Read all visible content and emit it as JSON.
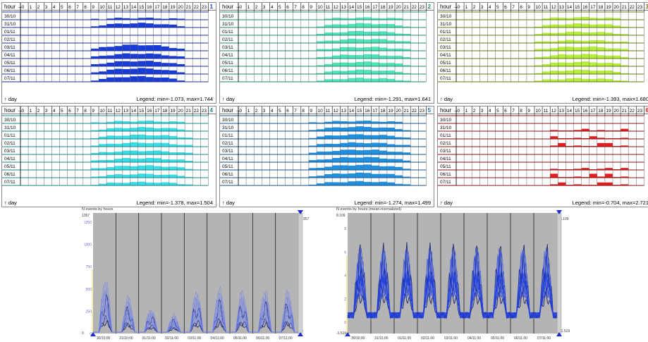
{
  "hours": [
    "0",
    "1",
    "2",
    "3",
    "4",
    "5",
    "6",
    "7",
    "8",
    "9",
    "10",
    "11",
    "12",
    "13",
    "14",
    "15",
    "16",
    "17",
    "18",
    "19",
    "20",
    "21",
    "22",
    "23"
  ],
  "days": [
    "30/10",
    "31/10",
    "01/11",
    "02/11",
    "03/11",
    "04/11",
    "05/11",
    "06/11",
    "07/11"
  ],
  "hour_label": "hour →",
  "day_label": "↑ day",
  "panels": [
    {
      "number": "1",
      "color": "#1a3cd6",
      "grid": "#1d2f9a",
      "legend": "Legend: min=-1.073, max=1.744",
      "start": 9,
      "end": 20,
      "pattern": [
        0.2,
        0.6,
        0.0,
        0.0,
        0.85,
        0.7,
        0.75,
        0.8,
        0.75
      ],
      "numcolor": "#1a3cd6"
    },
    {
      "number": "2",
      "color": "#4de2b8",
      "grid": "#1f8a6c",
      "legend": "Legend: min=-1.291, max=1.641",
      "start": 10,
      "end": 21,
      "pattern": [
        0.25,
        0.55,
        0.55,
        0.55,
        0.5,
        0.55,
        0.6,
        0.55,
        0.5
      ],
      "numcolor": "#1f8a6c"
    },
    {
      "number": "3",
      "color": "#b6ec3a",
      "grid": "#5f7d10",
      "legend": "Legend: min=-1.393, max=1.680",
      "start": 10,
      "end": 21,
      "pattern": [
        0.3,
        0.5,
        0.45,
        0.35,
        0.55,
        0.6,
        0.6,
        0.55,
        0.45
      ],
      "numcolor": "#7a6a10"
    },
    {
      "number": "4",
      "color": "#37dde3",
      "grid": "#16878b",
      "legend": "Legend: min=-1.378, max=1.504",
      "start": 9,
      "end": 21,
      "pattern": [
        0.3,
        0.5,
        0.55,
        0.55,
        0.5,
        0.55,
        0.6,
        0.5,
        0.45
      ],
      "numcolor": "#16878b"
    },
    {
      "number": "5",
      "color": "#1f8fe0",
      "grid": "#10508a",
      "legend": "Legend: min=-1.274, max=1.499",
      "start": 9,
      "end": 21,
      "pattern": [
        0.3,
        0.6,
        0.6,
        0.55,
        0.65,
        0.7,
        0.7,
        0.65,
        0.55
      ],
      "numcolor": "#1f6fcc"
    },
    {
      "number": "6",
      "color": "#e41e1e",
      "grid": "#8a1010",
      "legend": "Legend: min=-0.704, max=2.721",
      "start": 12,
      "end": 21,
      "pattern": [
        0.0,
        0.3,
        0.35,
        0.5,
        0.0,
        0.0,
        0.25,
        0.55,
        0.4
      ],
      "numcolor": "#e41e1e"
    }
  ],
  "charts": [
    {
      "title": "N events by hours",
      "ymax_label": "1357",
      "ymin_label": "0",
      "right_max": "1357",
      "right_min": "0",
      "yticks": [
        "1250",
        "1000",
        "750",
        "500",
        "250",
        "0"
      ],
      "xticks": [
        "30/10;00",
        "31/10;00",
        "01/11;00",
        "02/11;00",
        "03/11;00",
        "04/11;00",
        "05/11;00",
        "06/11;00",
        "07/11;00"
      ],
      "line_color": "#6d7ff0"
    },
    {
      "title": "N events by hours (mean-normalized)",
      "ymax_label": "8.109",
      "ymin_label": "-1.519",
      "right_max": "8.109",
      "right_min": "-1.519",
      "yticks": [
        "8",
        "6",
        "4",
        "2",
        "0"
      ],
      "xticks": [
        "30/10;00",
        "31/10;00",
        "01/11;00",
        "02/11;00",
        "03/11;00",
        "04/11;00",
        "05/11;00",
        "06/11;00",
        "07/11;00"
      ],
      "line_color": "#2242e8"
    }
  ],
  "colors": {
    "plot_bg": "#b4b4b4",
    "day_line": "#202020",
    "marker": "#1a2cd0",
    "ycolor": "#6a6ac8"
  }
}
